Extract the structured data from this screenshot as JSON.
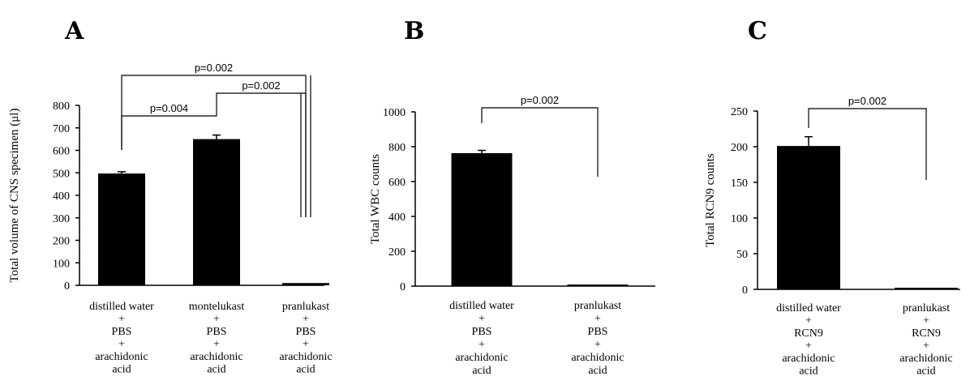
{
  "chart_data": [
    {
      "panel": "A",
      "type": "bar",
      "ylabel": "Total volume of CNS specimen (μl)",
      "ylim": [
        0,
        800
      ],
      "yticks": [
        "800",
        "700",
        "600",
        "500",
        "400",
        "300",
        "200",
        "100",
        "0"
      ],
      "categories": [
        [
          "distilled water",
          "+",
          "PBS",
          "+",
          "arachidonic",
          "acid"
        ],
        [
          "montelukast",
          "+",
          "PBS",
          "+",
          "arachidonic",
          "acid"
        ],
        [
          "pranlukast",
          "+",
          "PBS",
          "+",
          "arachidonic",
          "acid"
        ]
      ],
      "values": [
        497,
        650,
        10
      ],
      "errors": [
        8,
        18,
        0
      ],
      "comparisons": [
        {
          "from": 0,
          "to": 1,
          "label": "p=0.004"
        },
        {
          "from": 1,
          "to": 2,
          "label": "p=0.002"
        },
        {
          "from": 0,
          "to": 2,
          "label": "p=0.002"
        }
      ]
    },
    {
      "panel": "B",
      "type": "bar",
      "ylabel": "Total WBC counts",
      "ylim": [
        0,
        1000
      ],
      "yticks": [
        "1000",
        "800",
        "600",
        "400",
        "200",
        "0"
      ],
      "categories": [
        [
          "distilled water",
          "+",
          "PBS",
          "+",
          "arachidonic",
          "acid"
        ],
        [
          "pranlukast",
          "+",
          "PBS",
          "+",
          "arachidonic",
          "acid"
        ]
      ],
      "values": [
        763,
        8
      ],
      "errors": [
        16,
        0
      ],
      "comparisons": [
        {
          "from": 0,
          "to": 1,
          "label": "p=0.002"
        }
      ]
    },
    {
      "panel": "C",
      "type": "bar",
      "ylabel": "Total RCN9 counts",
      "ylim": [
        0,
        250
      ],
      "yticks": [
        "250",
        "200",
        "150",
        "100",
        "50",
        "0"
      ],
      "categories": [
        [
          "distilled water",
          "+",
          "RCN9",
          "+",
          "arachidonic",
          "acid"
        ],
        [
          "pranlukast",
          "+",
          "RCN9",
          "+",
          "arachidonic",
          "acid"
        ]
      ],
      "values": [
        201,
        1
      ],
      "errors": [
        13,
        0
      ],
      "comparisons": [
        {
          "from": 0,
          "to": 1,
          "label": "p=0.002"
        }
      ]
    }
  ]
}
